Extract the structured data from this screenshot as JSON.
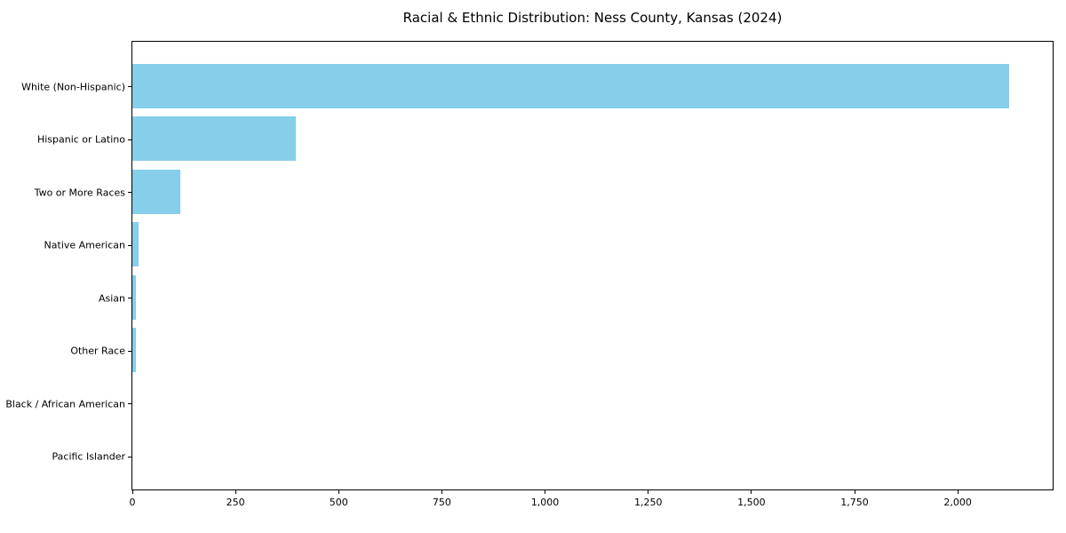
{
  "chart_data": {
    "type": "bar",
    "orientation": "horizontal",
    "title": "Racial & Ethnic Distribution: Ness County, Kansas (2024)",
    "xlabel": "",
    "ylabel": "",
    "categories": [
      "White (Non-Hispanic)",
      "Hispanic or Latino",
      "Two or More Races",
      "Native American",
      "Asian",
      "Other Race",
      "Black / African American",
      "Pacific Islander"
    ],
    "values": [
      2125,
      395,
      116,
      14,
      8,
      9,
      0,
      0
    ],
    "xlim": [
      0,
      2230
    ],
    "x_ticks": [
      0,
      250,
      500,
      750,
      1000,
      1250,
      1500,
      1750,
      2000
    ],
    "x_tick_labels": [
      "0",
      "250",
      "500",
      "750",
      "1,000",
      "1,250",
      "1,500",
      "1,750",
      "2,000"
    ],
    "bar_color": "#87CEEB",
    "grid": false,
    "legend": null
  }
}
